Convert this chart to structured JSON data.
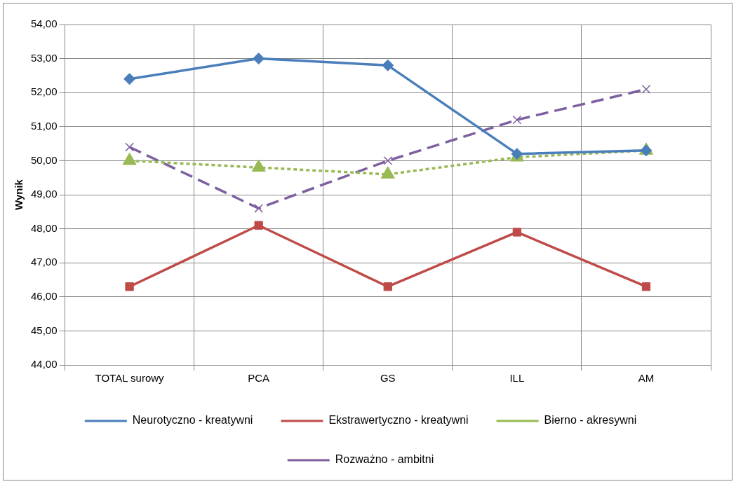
{
  "chart_data": {
    "type": "line",
    "ylabel": "Wynik",
    "categories": [
      "TOTAL surowy",
      "PCA",
      "GS",
      "ILL",
      "AM"
    ],
    "series": [
      {
        "name": "Neurotyczno - kreatywni",
        "color": "#4a7ebb",
        "marker": "diamond",
        "line_style": "solid",
        "values": [
          52.4,
          53.0,
          52.8,
          50.2,
          50.3
        ]
      },
      {
        "name": "Ekstrawertyczno - kreatywni",
        "color": "#be4b48",
        "marker": "square",
        "line_style": "solid",
        "values": [
          46.3,
          48.1,
          46.3,
          47.9,
          46.3
        ]
      },
      {
        "name": "Bierno - akresywni",
        "color": "#98b954",
        "marker": "triangle",
        "line_style": "dotted",
        "values": [
          50.0,
          49.8,
          49.6,
          50.1,
          50.3
        ]
      },
      {
        "name": "Rozważno - ambitni",
        "color": "#7d60a0",
        "marker": "cross",
        "line_style": "dashed",
        "values": [
          50.4,
          48.6,
          50.0,
          51.2,
          52.1
        ]
      }
    ],
    "ylim": [
      44,
      54
    ],
    "yticks": [
      {
        "value": 44,
        "label": "44,00"
      },
      {
        "value": 45,
        "label": "45,00"
      },
      {
        "value": 46,
        "label": "46,00"
      },
      {
        "value": 47,
        "label": "47,00"
      },
      {
        "value": 48,
        "label": "48,00"
      },
      {
        "value": 49,
        "label": "49,00"
      },
      {
        "value": 50,
        "label": "50,00"
      },
      {
        "value": 51,
        "label": "51,00"
      },
      {
        "value": 52,
        "label": "52,00"
      },
      {
        "value": 53,
        "label": "53,00"
      },
      {
        "value": 54,
        "label": "54,00"
      }
    ],
    "grid": true,
    "legend": "bottom"
  }
}
